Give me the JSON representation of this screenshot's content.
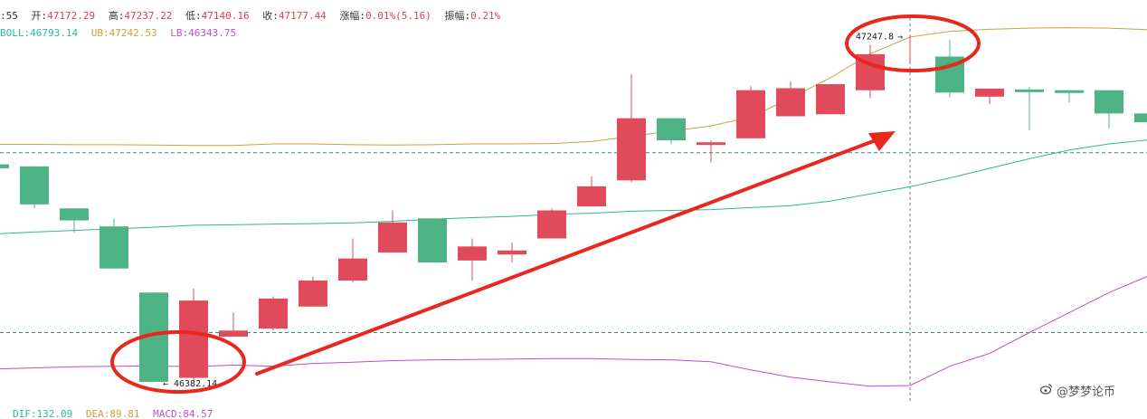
{
  "info": {
    "time_fragment": ":55",
    "open_label": "开:",
    "open_value": "47172.29",
    "high_label": "高:",
    "high_value": "47237.22",
    "low_label": "低:",
    "low_value": "47140.16",
    "close_label": "收:",
    "close_value": "47177.44",
    "change_label": "涨幅:",
    "change_value": "0.01%(5.16)",
    "amp_label": "振幅:",
    "amp_value": "0.21%"
  },
  "boll": {
    "mid_label": "BOLL:",
    "mid_value": "46793.14",
    "up_label": "UB:",
    "up_value": "47242.53",
    "lo_label": "LB:",
    "lo_value": "46343.75"
  },
  "macd": {
    "dif_label": "DIF:",
    "dif_value": "132.09",
    "dea_label": "DEA:",
    "dea_value": "89.81",
    "macd_label": "MACD:",
    "macd_value": "84.57"
  },
  "watermark": {
    "text": "@梦梦论币",
    "icon": "weibo-icon"
  },
  "colors": {
    "up": "#e04a5a",
    "down": "#4db384",
    "boll_mid": "#2ab898",
    "boll_up": "#c9a238",
    "boll_lo": "#c04ec8",
    "arrow": "#e8281e",
    "circle": "#e8281e",
    "dashed": "#3a8a7a"
  },
  "chart_data": {
    "type": "candlestick",
    "price_range": [
      46330,
      47290
    ],
    "ref_lines": [
      46954,
      46505
    ],
    "candles": [
      {
        "o": 46925,
        "c": 46915,
        "h": 46925,
        "l": 46915
      },
      {
        "o": 46920,
        "c": 46825,
        "h": 46920,
        "l": 46815
      },
      {
        "o": 46815,
        "c": 46785,
        "h": 46815,
        "l": 46755
      },
      {
        "o": 46770,
        "c": 46665,
        "h": 46790,
        "l": 46665
      },
      {
        "o": 46605,
        "c": 46382,
        "h": 46605,
        "l": 46382
      },
      {
        "o": 46392,
        "c": 46585,
        "h": 46615,
        "l": 46382
      },
      {
        "o": 46495,
        "c": 46510,
        "h": 46555,
        "l": 46495
      },
      {
        "o": 46515,
        "c": 46590,
        "h": 46595,
        "l": 46510
      },
      {
        "o": 46570,
        "c": 46635,
        "h": 46645,
        "l": 46570
      },
      {
        "o": 46635,
        "c": 46690,
        "h": 46740,
        "l": 46630
      },
      {
        "o": 46705,
        "c": 46780,
        "h": 46810,
        "l": 46705
      },
      {
        "o": 46790,
        "c": 46680,
        "h": 46790,
        "l": 46680
      },
      {
        "o": 46685,
        "c": 46720,
        "h": 46740,
        "l": 46635
      },
      {
        "o": 46700,
        "c": 46710,
        "h": 46730,
        "l": 46680
      },
      {
        "o": 46740,
        "c": 46810,
        "h": 46815,
        "l": 46740
      },
      {
        "o": 46820,
        "c": 46870,
        "h": 46895,
        "l": 46820
      },
      {
        "o": 46885,
        "c": 47040,
        "h": 47150,
        "l": 46880
      },
      {
        "o": 47040,
        "c": 46985,
        "h": 47040,
        "l": 46975
      },
      {
        "o": 46975,
        "c": 46980,
        "h": 46985,
        "l": 46930
      },
      {
        "o": 46990,
        "c": 47110,
        "h": 47120,
        "l": 46990
      },
      {
        "o": 47045,
        "c": 47115,
        "h": 47132,
        "l": 47045
      },
      {
        "o": 47050,
        "c": 47125,
        "h": 47125,
        "l": 47050
      },
      {
        "o": 47110,
        "c": 47200,
        "h": 47224,
        "l": 47090
      },
      {
        "o": 47247.8,
        "c": 47247,
        "h": 47247.8,
        "l": 47247.8
      },
      {
        "o": 47194,
        "c": 47104,
        "h": 47236,
        "l": 47092
      },
      {
        "o": 47094,
        "c": 47114,
        "h": 47114,
        "l": 47075
      },
      {
        "o": 47112,
        "c": 47108,
        "h": 47118,
        "l": 47011
      },
      {
        "o": 47110,
        "c": 47104,
        "h": 47110,
        "l": 47080
      },
      {
        "o": 47110,
        "c": 47052,
        "h": 47110,
        "l": 47015
      },
      {
        "o": 47052,
        "c": 47030,
        "h": 47052,
        "l": 47018
      }
    ],
    "boll_up": [
      46975,
      46975,
      46974,
      46974,
      46973,
      46972,
      46972,
      46976,
      46976,
      46974,
      46973,
      46974,
      46976,
      46976,
      46977,
      46982,
      46995,
      47008,
      47021,
      47043,
      47090,
      47141,
      47201,
      47242.53,
      47257,
      47262,
      47265,
      47266,
      47265,
      47261
    ],
    "boll_mid": [
      46751,
      46756,
      46760,
      46764,
      46768,
      46773,
      46774,
      46776,
      46777,
      46779,
      46783,
      46788,
      46792,
      46795,
      46800,
      46803,
      46808,
      46810,
      46812,
      46817,
      46822,
      46833,
      46851,
      46869,
      46891,
      46915,
      46939,
      46961,
      46976,
      46986
    ],
    "boll_lo": [
      46414,
      46417,
      46420,
      46421,
      46422,
      46420,
      46424,
      46421,
      46428,
      46431,
      46435,
      46437,
      46438,
      46439,
      46440,
      46440,
      46438,
      46437,
      46432,
      46412,
      46394,
      46382,
      46371,
      46373,
      46421,
      46453,
      46505,
      46555,
      46605,
      46647
    ],
    "annotations": {
      "high_label": "47247.8",
      "low_label": "46382.14"
    }
  }
}
